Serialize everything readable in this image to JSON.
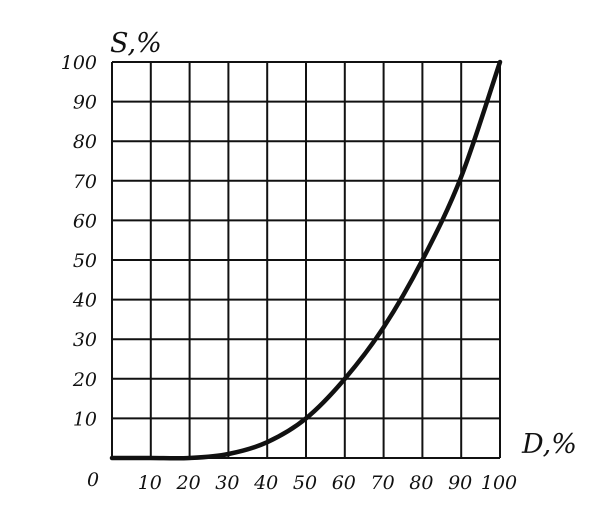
{
  "chart_data": {
    "type": "line",
    "xlabel": "D,%",
    "ylabel": "S,%",
    "xlim": [
      0,
      100
    ],
    "ylim": [
      0,
      100
    ],
    "grid": true,
    "origin_label": "0",
    "x_ticks": [
      10,
      20,
      30,
      40,
      50,
      60,
      70,
      80,
      90,
      100
    ],
    "y_ticks": [
      10,
      20,
      30,
      40,
      50,
      60,
      70,
      80,
      90,
      100
    ],
    "series": [
      {
        "x": [
          0,
          10,
          20,
          30,
          40,
          50,
          60,
          70,
          80,
          90,
          100
        ],
        "y": [
          0,
          0,
          0,
          1,
          4,
          10,
          20,
          33,
          50,
          71,
          100
        ]
      }
    ]
  }
}
